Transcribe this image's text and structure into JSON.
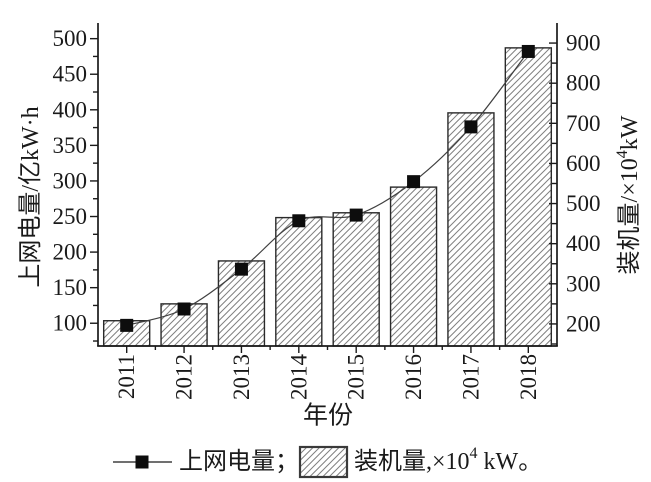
{
  "chart_data": {
    "type": "combo_bar_line",
    "title": "",
    "grid": false,
    "x": {
      "label": "年份",
      "categories": [
        "2011",
        "2012",
        "2013",
        "2014",
        "2015",
        "2016",
        "2017",
        "2018"
      ]
    },
    "axes": {
      "left": {
        "label": "上网电量/亿kW·h",
        "range": [
          68,
          522
        ],
        "tick_start": 100,
        "tick_end": 500,
        "tick_step": 50,
        "minor_step": 25
      },
      "right": {
        "label": "装机量/×10⁴kW",
        "label_prefix": "装机量/×10",
        "label_sup": "4",
        "label_suffix": "kW",
        "range": [
          145,
          950
        ],
        "tick_start": 200,
        "tick_end": 900,
        "tick_step": 100,
        "minor_step": 50
      }
    },
    "series": [
      {
        "name": "上网电量",
        "type": "line",
        "axis": "left",
        "marker": "square",
        "values": [
          97,
          120,
          176,
          244,
          252,
          299,
          376,
          482
        ]
      },
      {
        "name": "装机量",
        "type": "bar",
        "axis": "right",
        "hatch": "diagonal-forward",
        "values": [
          208,
          250,
          357,
          465,
          477,
          541,
          726,
          888
        ]
      }
    ],
    "legend": {
      "position": "bottom",
      "line_entry": {
        "label": "上网电量",
        "separator": "；"
      },
      "bar_entry": {
        "prefix": "装机量,×10",
        "sup": "4",
        "suffix": " kW。"
      }
    }
  },
  "colors": {
    "background": "#ffffff",
    "axis": "#1a1a1a",
    "text": "#1a1a1a",
    "bar_outline": "#2a2a2a",
    "hatch": "#808080",
    "line": "#404040",
    "marker": "#0d0d0d",
    "swatch_border": "#3a3a3a"
  }
}
